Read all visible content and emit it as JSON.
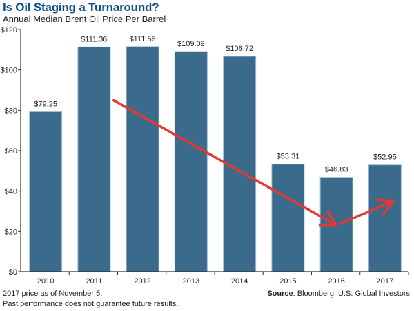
{
  "chart_data": {
    "type": "bar",
    "title": "Is Oil Staging a Turnaround?",
    "subtitle": "Annual Median Brent Oil Price Per Barrel",
    "xlabel": "",
    "ylabel": "",
    "categories": [
      "2010",
      "2011",
      "2012",
      "2013",
      "2014",
      "2015",
      "2016",
      "2017"
    ],
    "values": [
      79.25,
      111.36,
      111.56,
      109.09,
      106.72,
      53.31,
      46.83,
      52.95
    ],
    "data_labels": [
      "$79.25",
      "$111.36",
      "$111.56",
      "$109.09",
      "$106.72",
      "$53.31",
      "$46.83",
      "$52.95"
    ],
    "ylim": [
      0,
      120
    ],
    "yticks": [
      0,
      20,
      40,
      60,
      80,
      100,
      120
    ],
    "ytick_labels": [
      "$0",
      "$20",
      "$40",
      "$60",
      "$80",
      "$100",
      "$120"
    ],
    "grid": false,
    "legend": "none",
    "annotations": [
      {
        "type": "arrow",
        "description": "downward trend arrow",
        "from": {
          "category": "2012",
          "value": 85
        },
        "to": {
          "category": "2016",
          "value": 23
        }
      },
      {
        "type": "arrow",
        "description": "upward trend arrow",
        "from": {
          "category": "2016",
          "value": 24
        },
        "to": {
          "category": "2017",
          "value": 35
        }
      }
    ],
    "colors": {
      "bar": "#3b6b8c",
      "bar_edge": "#9fbbd0",
      "arrow": "#e8372c",
      "title": "#0b4f8a"
    }
  },
  "footer": {
    "note1": "2017 price as of November 5.",
    "note2": "Past performance does not guarantee future results.",
    "source_label": "Source",
    "source_text": ": Bloomberg, U.S. Global Investors"
  }
}
